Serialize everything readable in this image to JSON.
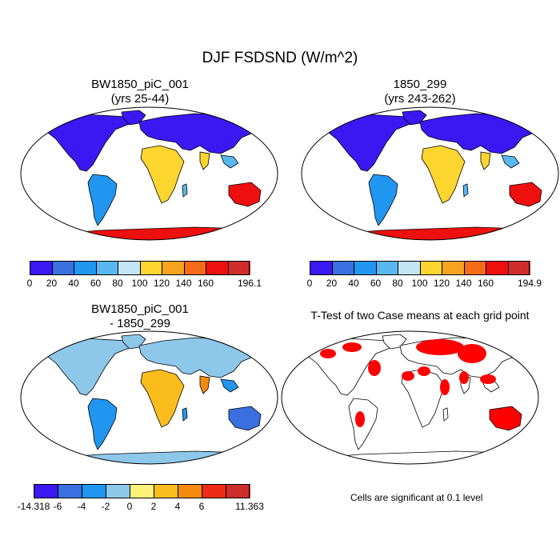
{
  "figure_title": "DJF FSDSND (W/m^2)",
  "panels": [
    {
      "title_line1": "BW1850_piC_001",
      "title_line2": "(yrs 25-44)"
    },
    {
      "title_line1": "1850_299",
      "title_line2": "(yrs 243-262)"
    },
    {
      "title_line1": "BW1850_piC_001",
      "title_line2": "- 1850_299"
    },
    {
      "title_line1": "T-Test of two Case means at each grid point",
      "title_line2": ""
    }
  ],
  "colorbars": [
    {
      "labels": [
        "0",
        "20",
        "40",
        "60",
        "80",
        "100",
        "120",
        "140",
        "160",
        "196.1"
      ],
      "colors": [
        "#3b18f2",
        "#3a6fe0",
        "#2196f0",
        "#59b8ef",
        "#c3e4f5",
        "#fcd52f",
        "#f9a421",
        "#f46b1a",
        "#ee0f0f",
        "#cf2c2c"
      ]
    },
    {
      "labels": [
        "0",
        "20",
        "40",
        "60",
        "80",
        "100",
        "120",
        "140",
        "160",
        "194.9"
      ],
      "colors": [
        "#3b18f2",
        "#3a6fe0",
        "#2196f0",
        "#59b8ef",
        "#c3e4f5",
        "#fcd52f",
        "#f9a421",
        "#f46b1a",
        "#ee0f0f",
        "#cf2c2c"
      ]
    },
    {
      "labels": [
        "-14.318",
        "-6",
        "-4",
        "-2",
        "0",
        "2",
        "4",
        "6",
        "11.363"
      ],
      "colors": [
        "#3b18f2",
        "#3a6fe0",
        "#2196f0",
        "#8dc8ea",
        "#fdf27a",
        "#fbbd1c",
        "#f68a0f",
        "#f02b15",
        "#cf2c2c"
      ]
    }
  ],
  "significance_note": "Cells are significant at 0.1 level",
  "significance_color": "#ff0000"
}
